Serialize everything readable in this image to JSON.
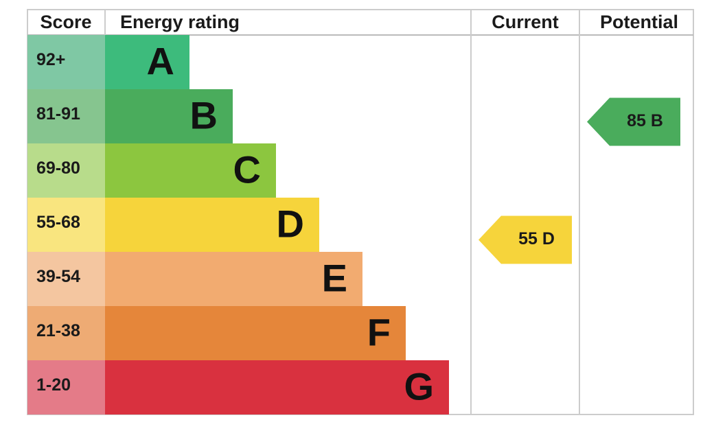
{
  "header": {
    "score": "Score",
    "rating": "Energy rating",
    "current": "Current",
    "potential": "Potential"
  },
  "bands": [
    {
      "score": "92+",
      "letter": "A",
      "color": "#3dbb7c",
      "score_color": "#7fc8a4"
    },
    {
      "score": "81-91",
      "letter": "B",
      "color": "#4aac5c",
      "score_color": "#86c58f"
    },
    {
      "score": "69-80",
      "letter": "C",
      "color": "#8cc63f",
      "score_color": "#b8dc8b"
    },
    {
      "score": "55-68",
      "letter": "D",
      "color": "#f6d43b",
      "score_color": "#f9e57f"
    },
    {
      "score": "39-54",
      "letter": "E",
      "color": "#f2ab70",
      "score_color": "#f4c6a0"
    },
    {
      "score": "21-38",
      "letter": "F",
      "color": "#e5863a",
      "score_color": "#eeab74"
    },
    {
      "score": "1-20",
      "letter": "G",
      "color": "#d9313f",
      "score_color": "#e47b88"
    }
  ],
  "current": "55 D",
  "potential": "85 B"
}
